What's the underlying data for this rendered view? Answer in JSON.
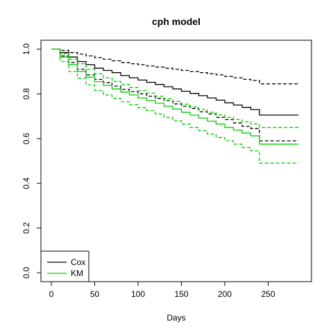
{
  "chart_data": {
    "type": "line",
    "title": "cph model",
    "xlabel": "Days",
    "ylabel": "",
    "xlim": [
      -12,
      300
    ],
    "ylim": [
      -0.04,
      1.04
    ],
    "x_ticks": [
      0,
      50,
      100,
      150,
      200,
      250
    ],
    "y_ticks": [
      0.0,
      0.2,
      0.4,
      0.6,
      0.8,
      1.0
    ],
    "x_tick_labels": [
      "0",
      "50",
      "100",
      "150",
      "200",
      "250"
    ],
    "y_tick_labels": [
      "0.0",
      "0.2",
      "0.4",
      "0.6",
      "0.8",
      "1.0"
    ],
    "grid": false,
    "legend_position": "bottom-left",
    "legend": [
      {
        "label": "Cox",
        "color": "#000000"
      },
      {
        "label": "KM",
        "color": "#00cc00"
      }
    ],
    "series": [
      {
        "name": "Cox",
        "role": "estimate",
        "color": "#000000",
        "dash": "solid",
        "x": [
          0,
          10,
          20,
          30,
          40,
          50,
          60,
          70,
          80,
          90,
          100,
          110,
          120,
          130,
          140,
          150,
          160,
          170,
          180,
          190,
          200,
          210,
          220,
          230,
          240,
          250,
          260,
          270,
          285
        ],
        "y": [
          1.0,
          0.985,
          0.965,
          0.945,
          0.93,
          0.915,
          0.905,
          0.895,
          0.882,
          0.872,
          0.862,
          0.852,
          0.842,
          0.832,
          0.822,
          0.812,
          0.802,
          0.792,
          0.782,
          0.772,
          0.76,
          0.75,
          0.74,
          0.73,
          0.705,
          0.705,
          0.705,
          0.705,
          0.705
        ]
      },
      {
        "name": "Cox",
        "role": "upper-ci",
        "color": "#000000",
        "dash": "dashed",
        "x": [
          0,
          10,
          20,
          30,
          40,
          50,
          60,
          70,
          80,
          90,
          100,
          110,
          120,
          130,
          140,
          150,
          160,
          170,
          180,
          190,
          200,
          210,
          220,
          230,
          240,
          250,
          260,
          270,
          285
        ],
        "y": [
          1.0,
          0.995,
          0.985,
          0.978,
          0.97,
          0.962,
          0.955,
          0.948,
          0.94,
          0.935,
          0.93,
          0.925,
          0.92,
          0.915,
          0.91,
          0.905,
          0.9,
          0.895,
          0.89,
          0.885,
          0.878,
          0.872,
          0.865,
          0.86,
          0.845,
          0.845,
          0.845,
          0.845,
          0.845
        ]
      },
      {
        "name": "Cox",
        "role": "lower-ci",
        "color": "#000000",
        "dash": "dashed",
        "x": [
          0,
          10,
          20,
          30,
          40,
          50,
          60,
          70,
          80,
          90,
          100,
          110,
          120,
          130,
          140,
          150,
          160,
          170,
          180,
          190,
          200,
          210,
          220,
          230,
          240,
          250,
          260,
          270,
          285
        ],
        "y": [
          1.0,
          0.97,
          0.94,
          0.91,
          0.885,
          0.865,
          0.85,
          0.835,
          0.82,
          0.81,
          0.8,
          0.79,
          0.78,
          0.77,
          0.755,
          0.745,
          0.735,
          0.72,
          0.71,
          0.695,
          0.685,
          0.67,
          0.655,
          0.645,
          0.59,
          0.59,
          0.59,
          0.59,
          0.59
        ]
      },
      {
        "name": "KM",
        "role": "estimate",
        "color": "#00cc00",
        "dash": "solid",
        "x": [
          0,
          10,
          20,
          30,
          40,
          50,
          60,
          70,
          80,
          90,
          100,
          110,
          120,
          130,
          140,
          150,
          160,
          170,
          180,
          190,
          200,
          210,
          220,
          230,
          240,
          250,
          260,
          270,
          285
        ],
        "y": [
          1.0,
          0.965,
          0.93,
          0.9,
          0.875,
          0.855,
          0.838,
          0.822,
          0.808,
          0.795,
          0.782,
          0.77,
          0.758,
          0.745,
          0.732,
          0.718,
          0.705,
          0.692,
          0.678,
          0.665,
          0.65,
          0.638,
          0.625,
          0.612,
          0.575,
          0.575,
          0.575,
          0.575,
          0.575
        ]
      },
      {
        "name": "KM",
        "role": "upper-ci",
        "color": "#00cc00",
        "dash": "dashed",
        "x": [
          0,
          10,
          20,
          30,
          40,
          50,
          60,
          70,
          80,
          90,
          100,
          110,
          120,
          130,
          140,
          150,
          160,
          170,
          180,
          190,
          200,
          210,
          220,
          230,
          240,
          250,
          260,
          270,
          285
        ],
        "y": [
          1.0,
          0.98,
          0.955,
          0.935,
          0.91,
          0.89,
          0.872,
          0.856,
          0.842,
          0.828,
          0.815,
          0.803,
          0.79,
          0.778,
          0.766,
          0.754,
          0.742,
          0.73,
          0.718,
          0.706,
          0.695,
          0.685,
          0.675,
          0.665,
          0.65,
          0.65,
          0.65,
          0.65,
          0.65
        ]
      },
      {
        "name": "KM",
        "role": "lower-ci",
        "color": "#00cc00",
        "dash": "dashed",
        "x": [
          0,
          10,
          20,
          30,
          40,
          50,
          60,
          70,
          80,
          90,
          100,
          110,
          120,
          130,
          140,
          150,
          160,
          170,
          180,
          190,
          200,
          210,
          220,
          230,
          240,
          250,
          260,
          270,
          285
        ],
        "y": [
          1.0,
          0.945,
          0.9,
          0.87,
          0.84,
          0.815,
          0.795,
          0.78,
          0.765,
          0.752,
          0.738,
          0.725,
          0.71,
          0.695,
          0.68,
          0.665,
          0.65,
          0.635,
          0.62,
          0.605,
          0.59,
          0.575,
          0.56,
          0.545,
          0.49,
          0.49,
          0.49,
          0.49,
          0.49
        ]
      }
    ]
  }
}
